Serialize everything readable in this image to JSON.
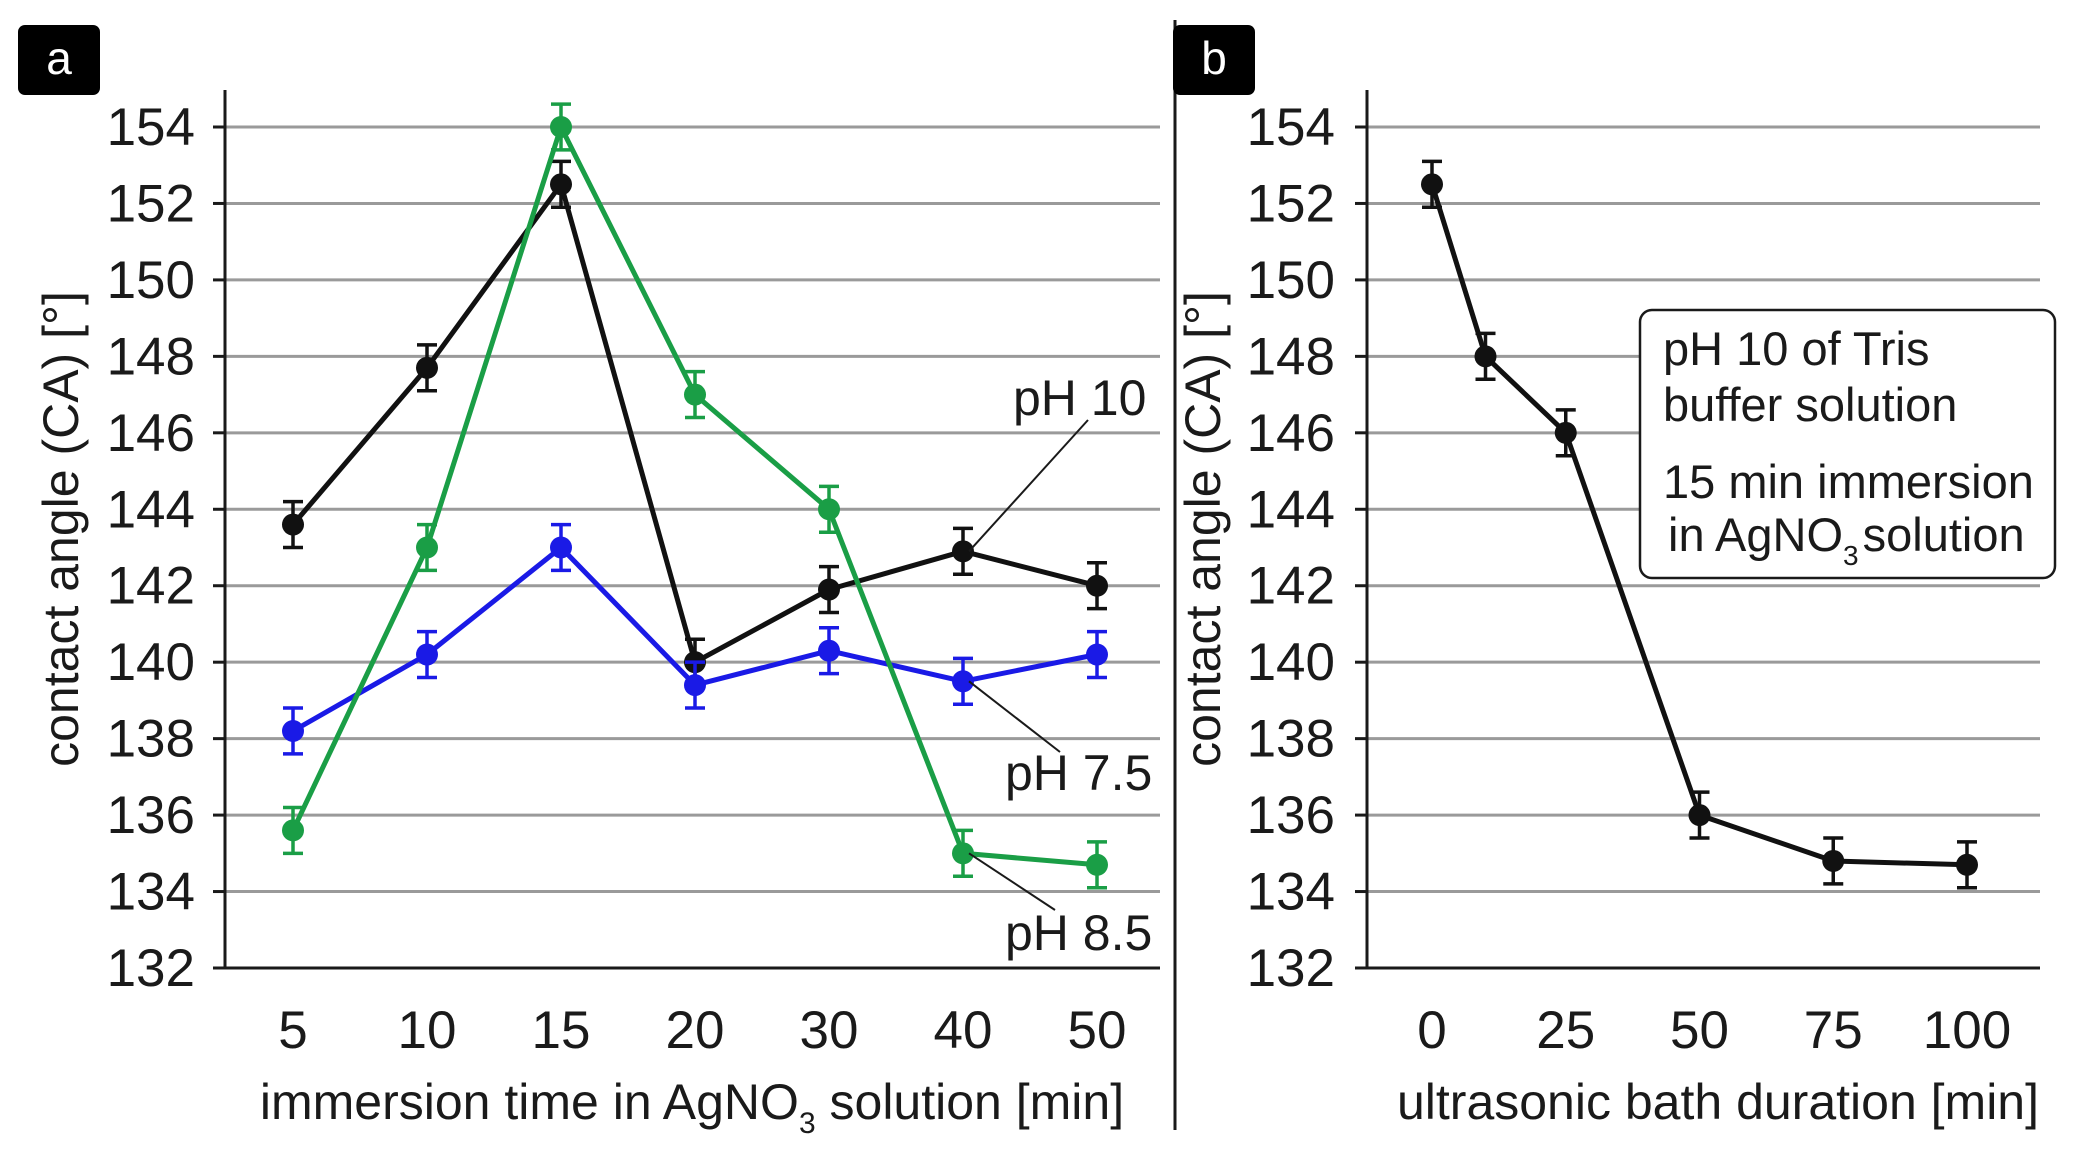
{
  "panels": [
    {
      "badge": "a",
      "annotations": [
        {
          "label": "pH 10",
          "series": 0,
          "at_x": "40"
        },
        {
          "label": "pH 7.5",
          "series": 1,
          "at_x": "40"
        },
        {
          "label": "pH 8.5",
          "series": 2,
          "at_x": "40"
        }
      ]
    },
    {
      "badge": "b",
      "legend_box": {
        "line1": "pH 10 of Tris",
        "line2": "buffer solution",
        "line3": "15 min immersion",
        "line4_pre": "in AgNO",
        "line4_sub": "3",
        "line4_post": "solution"
      }
    }
  ],
  "chart_data": [
    {
      "type": "line",
      "categories": [
        "5",
        "10",
        "15",
        "20",
        "30",
        "40",
        "50"
      ],
      "xlabel_pre": "immersion time in AgNO",
      "xlabel_sub": "3",
      "xlabel_post": " solution [min]",
      "ylabel": "contact angle (CA)  [°]",
      "ylim": [
        132,
        154
      ],
      "yticks": [
        132,
        134,
        136,
        138,
        140,
        142,
        144,
        146,
        148,
        150,
        152,
        154
      ],
      "grid": true,
      "series": [
        {
          "name": "pH 10",
          "color": "#111111",
          "values": [
            143.6,
            147.7,
            152.5,
            140.0,
            141.9,
            142.9,
            142.0
          ],
          "errors": [
            0.6,
            0.6,
            0.6,
            0.6,
            0.6,
            0.6,
            0.6
          ]
        },
        {
          "name": "pH 7.5",
          "color": "#1a1ae6",
          "values": [
            138.2,
            140.2,
            143.0,
            139.4,
            140.3,
            139.5,
            140.2
          ],
          "errors": [
            0.6,
            0.6,
            0.6,
            0.6,
            0.6,
            0.6,
            0.6
          ]
        },
        {
          "name": "pH 8.5",
          "color": "#1a9e46",
          "values": [
            135.6,
            143.0,
            154.0,
            147.0,
            144.0,
            135.0,
            134.7
          ],
          "errors": [
            0.6,
            0.6,
            0.6,
            0.6,
            0.6,
            0.6,
            0.6
          ]
        }
      ]
    },
    {
      "type": "line",
      "x": [
        0,
        10,
        25,
        50,
        75,
        100
      ],
      "xticks": [
        0,
        25,
        50,
        75,
        100
      ],
      "xlim": [
        0,
        100
      ],
      "xlabel": "ultrasonic bath duration [min]",
      "ylabel": "contact angle (CA)  [°]",
      "ylim": [
        132,
        154
      ],
      "yticks": [
        132,
        134,
        136,
        138,
        140,
        142,
        144,
        146,
        148,
        150,
        152,
        154
      ],
      "grid": true,
      "series": [
        {
          "color": "#111111",
          "values": [
            152.5,
            148.0,
            146.0,
            136.0,
            134.8,
            134.7
          ],
          "errors": [
            0.6,
            0.6,
            0.6,
            0.6,
            0.6,
            0.6
          ]
        }
      ]
    }
  ]
}
